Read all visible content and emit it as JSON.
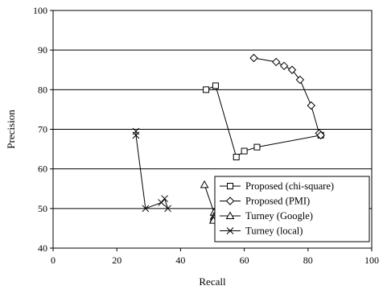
{
  "chart_data": {
    "type": "line",
    "title": "",
    "xlabel": "Recall",
    "ylabel": "Precision",
    "xlim": [
      0,
      100
    ],
    "ylim": [
      40,
      100
    ],
    "xticks": [
      0,
      20,
      40,
      60,
      80,
      100
    ],
    "yticks": [
      40,
      50,
      60,
      70,
      80,
      90,
      100
    ],
    "grid": "horizontal",
    "legend_position": "bottom-right",
    "series": [
      {
        "name": "Proposed (chi-square)",
        "marker": "square",
        "points": [
          [
            48,
            80
          ],
          [
            51,
            81
          ],
          [
            57.5,
            63
          ],
          [
            60,
            64.5
          ],
          [
            64,
            65.5
          ],
          [
            84,
            68.5
          ]
        ]
      },
      {
        "name": "Proposed (PMI)",
        "marker": "diamond",
        "points": [
          [
            63,
            88
          ],
          [
            70,
            87
          ],
          [
            72.5,
            86
          ],
          [
            75,
            85
          ],
          [
            77.5,
            82.5
          ],
          [
            81,
            76
          ],
          [
            83.5,
            69
          ],
          [
            84,
            68.5
          ]
        ]
      },
      {
        "name": "Turney (Google)",
        "marker": "triangle",
        "points": [
          [
            47.5,
            56
          ],
          [
            50.5,
            49
          ],
          [
            50.5,
            48
          ],
          [
            50.5,
            47.5
          ],
          [
            50.3,
            47
          ]
        ]
      },
      {
        "name": "Turney (local)",
        "marker": "x",
        "points": [
          [
            26,
            69.5
          ],
          [
            26,
            68.5
          ],
          [
            29,
            50
          ],
          [
            34,
            51.5
          ],
          [
            35,
            52.5
          ],
          [
            36,
            50
          ]
        ]
      }
    ]
  }
}
